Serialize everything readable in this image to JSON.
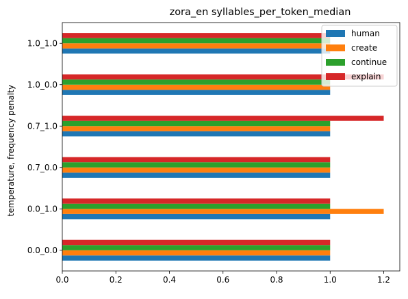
{
  "chart_data": {
    "type": "bar",
    "orientation": "horizontal",
    "title": "zora_en syllables_per_token_median",
    "xlabel": "",
    "ylabel": "temperature, frequency penalty",
    "categories": [
      "0.0_0.0",
      "0.0_1.0",
      "0.7_0.0",
      "0.7_1.0",
      "1.0_0.0",
      "1.0_1.0"
    ],
    "series": [
      {
        "name": "human",
        "color": "#1f77b4",
        "values": [
          1.0,
          1.0,
          1.0,
          1.0,
          1.0,
          1.0
        ]
      },
      {
        "name": "create",
        "color": "#ff7f0e",
        "values": [
          1.0,
          1.2,
          1.0,
          1.0,
          1.0,
          1.0
        ]
      },
      {
        "name": "continue",
        "color": "#2ca02c",
        "values": [
          1.0,
          1.0,
          1.0,
          1.0,
          1.0,
          1.0
        ]
      },
      {
        "name": "explain",
        "color": "#d62728",
        "values": [
          1.0,
          1.0,
          1.0,
          1.2,
          1.2,
          1.0
        ]
      }
    ],
    "xlim": [
      0,
      1.26
    ],
    "xticks": [
      0.0,
      0.2,
      0.4,
      0.6,
      0.8,
      1.0,
      1.2
    ],
    "xtick_labels": [
      "0.0",
      "0.2",
      "0.4",
      "0.6",
      "0.8",
      "1.0",
      "1.2"
    ],
    "grid": false,
    "legend_position": "top-right"
  }
}
